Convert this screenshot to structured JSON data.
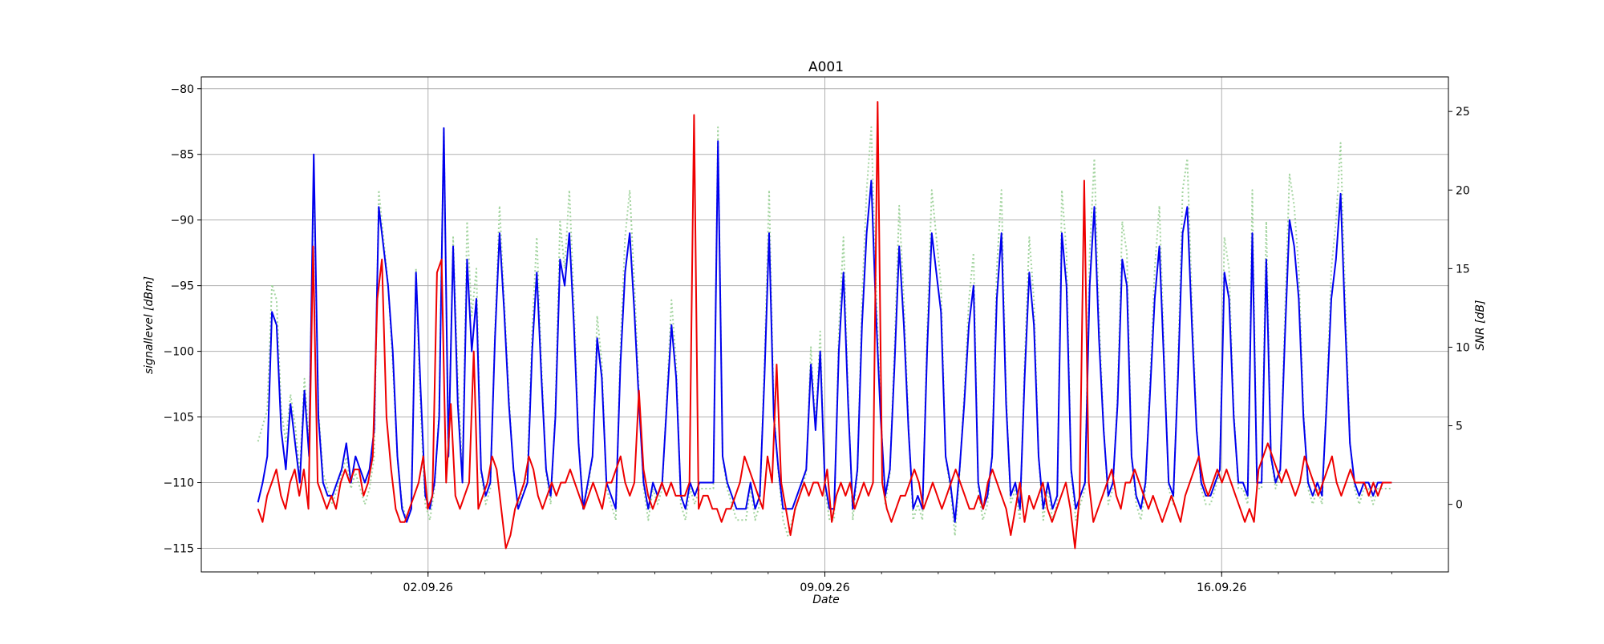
{
  "chart_data": {
    "type": "line",
    "title": "A001",
    "xlabel": "Date",
    "ylabel_left": "signallevel [dBm]",
    "ylabel_right": "SNR [dB]",
    "x_start": "30.08.26",
    "x_end": "19.09.26",
    "xlim": [
      "29.08.26",
      "20.09.26"
    ],
    "ylim_left": [
      -116.8,
      -79.1
    ],
    "ylim_right": [
      -4.3,
      27.2
    ],
    "x_ticks": [
      "02.09.26",
      "09.09.26",
      "16.09.26"
    ],
    "y_ticks_left": [
      -80,
      -85,
      -90,
      -95,
      -100,
      -105,
      -110,
      -115
    ],
    "y_ticks_right": [
      0,
      5,
      10,
      15,
      20,
      25
    ],
    "grid": true,
    "series": [
      {
        "axis": "left",
        "color": "#0000ee",
        "style": "solid",
        "values": [
          -111.5,
          -110,
          -108,
          -97,
          -98,
          -106,
          -109,
          -104,
          -107,
          -110,
          -103,
          -108,
          -85,
          -105,
          -110,
          -111,
          -111,
          -110,
          -109,
          -107,
          -110,
          -108,
          -109,
          -110,
          -109,
          -106,
          -89,
          -92,
          -95,
          -100,
          -108,
          -112,
          -113,
          -112,
          -94,
          -103,
          -111,
          -112,
          -110,
          -105,
          -83,
          -108,
          -92,
          -104,
          -110,
          -93,
          -100,
          -96,
          -109,
          -111,
          -110,
          -99,
          -91,
          -97,
          -104,
          -109,
          -112,
          -111,
          -110,
          -100,
          -94,
          -102,
          -109,
          -111,
          -105,
          -93,
          -95,
          -91,
          -98,
          -107,
          -112,
          -110,
          -108,
          -99,
          -102,
          -110,
          -111,
          -112,
          -101,
          -94,
          -91,
          -97,
          -104,
          -110,
          -112,
          -110,
          -111,
          -110,
          -104,
          -98,
          -102,
          -111,
          -112,
          -110,
          -111,
          -110,
          -110,
          -110,
          -110,
          -84,
          -108,
          -110,
          -111,
          -112,
          -112,
          -112,
          -110,
          -112,
          -111,
          -102,
          -91,
          -105,
          -109,
          -112,
          -112,
          -112,
          -111,
          -110,
          -109,
          -101,
          -106,
          -100,
          -110,
          -112,
          -112,
          -100,
          -94,
          -104,
          -112,
          -109,
          -98,
          -91,
          -87,
          -97,
          -105,
          -111,
          -109,
          -101,
          -92,
          -98,
          -106,
          -112,
          -111,
          -112,
          -100,
          -91,
          -94,
          -97,
          -108,
          -110,
          -113,
          -109,
          -104,
          -98,
          -95,
          -110,
          -112,
          -111,
          -108,
          -96,
          -91,
          -104,
          -111,
          -110,
          -112,
          -102,
          -94,
          -98,
          -108,
          -112,
          -110,
          -112,
          -111,
          -91,
          -95,
          -109,
          -112,
          -111,
          -110,
          -95,
          -89,
          -99,
          -106,
          -111,
          -110,
          -104,
          -93,
          -95,
          -108,
          -111,
          -112,
          -110,
          -103,
          -96,
          -92,
          -101,
          -110,
          -111,
          -102,
          -91,
          -89,
          -98,
          -106,
          -110,
          -111,
          -111,
          -110,
          -109,
          -94,
          -96,
          -105,
          -110,
          -110,
          -111,
          -91,
          -110,
          -110,
          -93,
          -108,
          -110,
          -109,
          -99,
          -90,
          -92,
          -96,
          -105,
          -110,
          -111,
          -110,
          -111,
          -104,
          -96,
          -93,
          -88,
          -98,
          -107,
          -110,
          -111,
          -110,
          -110,
          -111,
          -110,
          -110,
          -110,
          -110
        ]
      },
      {
        "axis": "left",
        "color": "#ee0000",
        "style": "solid",
        "values": [
          -112,
          -113,
          -111,
          -110,
          -109,
          -111,
          -112,
          -110,
          -109,
          -111,
          -109,
          -112,
          -92,
          -110,
          -111,
          -112,
          -111,
          -112,
          -110,
          -109,
          -110,
          -109,
          -109,
          -111,
          -110,
          -108,
          -96,
          -93,
          -105,
          -109,
          -112,
          -113,
          -113,
          -112,
          -111,
          -110,
          -108,
          -112,
          -111,
          -94,
          -93,
          -110,
          -104,
          -111,
          -112,
          -111,
          -110,
          -100,
          -112,
          -111,
          -110,
          -108,
          -109,
          -112,
          -115,
          -114,
          -112,
          -111,
          -110,
          -108,
          -109,
          -111,
          -112,
          -111,
          -110,
          -111,
          -110,
          -110,
          -109,
          -110,
          -111,
          -112,
          -111,
          -110,
          -111,
          -112,
          -110,
          -110,
          -109,
          -108,
          -110,
          -111,
          -110,
          -103,
          -109,
          -111,
          -112,
          -111,
          -110,
          -111,
          -110,
          -111,
          -111,
          -111,
          -110,
          -82,
          -112,
          -111,
          -111,
          -112,
          -112,
          -113,
          -112,
          -112,
          -111,
          -110,
          -108,
          -109,
          -110,
          -111,
          -112,
          -108,
          -110,
          -101,
          -110,
          -112,
          -114,
          -112,
          -111,
          -110,
          -111,
          -110,
          -110,
          -111,
          -109,
          -113,
          -111,
          -110,
          -111,
          -110,
          -112,
          -111,
          -110,
          -111,
          -110,
          -81,
          -110,
          -112,
          -113,
          -112,
          -111,
          -111,
          -110,
          -109,
          -110,
          -112,
          -111,
          -110,
          -111,
          -112,
          -111,
          -110,
          -109,
          -110,
          -111,
          -112,
          -112,
          -111,
          -112,
          -110,
          -109,
          -110,
          -111,
          -112,
          -114,
          -112,
          -110,
          -113,
          -111,
          -112,
          -111,
          -110,
          -112,
          -113,
          -112,
          -111,
          -110,
          -112,
          -115,
          -111,
          -87,
          -110,
          -113,
          -112,
          -111,
          -110,
          -109,
          -111,
          -112,
          -110,
          -110,
          -109,
          -110,
          -111,
          -112,
          -111,
          -112,
          -113,
          -112,
          -111,
          -112,
          -113,
          -111,
          -110,
          -109,
          -108,
          -110,
          -111,
          -110,
          -109,
          -110,
          -109,
          -110,
          -111,
          -112,
          -113,
          -112,
          -113,
          -109,
          -108,
          -107,
          -108,
          -109,
          -110,
          -109,
          -110,
          -111,
          -110,
          -108,
          -109,
          -110,
          -111,
          -110,
          -109,
          -108,
          -110,
          -111,
          -110,
          -109,
          -110,
          -110,
          -110,
          -111,
          -110,
          -111,
          -110,
          -110,
          -110
        ]
      },
      {
        "axis": "right",
        "color": "#a3d49f",
        "style": "dotted",
        "values": [
          4,
          5,
          6,
          14,
          13,
          6,
          4,
          7,
          5,
          2,
          8,
          4,
          21,
          6,
          2,
          1,
          0,
          1,
          2,
          3,
          1,
          2,
          1,
          0,
          1,
          3,
          20,
          17,
          14,
          9,
          3,
          0,
          -1,
          0,
          15,
          6,
          0,
          -1,
          1,
          6,
          24,
          3,
          17,
          8,
          2,
          18,
          12,
          15,
          2,
          0,
          1,
          11,
          19,
          13,
          7,
          2,
          0,
          1,
          2,
          11,
          17,
          9,
          2,
          0,
          6,
          18,
          15,
          20,
          13,
          4,
          0,
          1,
          3,
          12,
          9,
          1,
          0,
          -1,
          10,
          17,
          20,
          14,
          7,
          1,
          -1,
          1,
          0,
          1,
          7,
          13,
          9,
          0,
          -1,
          1,
          0,
          1,
          1,
          1,
          1,
          24,
          3,
          1,
          0,
          -1,
          -1,
          -1,
          1,
          -1,
          0,
          9,
          20,
          6,
          2,
          -1,
          -2,
          -1,
          0,
          1,
          2,
          10,
          5,
          11,
          1,
          -1,
          -1,
          11,
          17,
          7,
          -1,
          2,
          13,
          20,
          24,
          14,
          6,
          0,
          2,
          10,
          19,
          13,
          5,
          -1,
          0,
          -1,
          11,
          20,
          17,
          14,
          3,
          1,
          -2,
          2,
          7,
          13,
          16,
          1,
          -1,
          0,
          3,
          15,
          20,
          7,
          0,
          1,
          -1,
          9,
          17,
          13,
          3,
          -1,
          1,
          -1,
          0,
          20,
          16,
          2,
          -1,
          0,
          1,
          16,
          22,
          12,
          5,
          0,
          1,
          7,
          18,
          16,
          3,
          0,
          -1,
          1,
          8,
          15,
          19,
          10,
          1,
          0,
          9,
          20,
          22,
          13,
          5,
          1,
          0,
          0,
          1,
          2,
          17,
          15,
          6,
          1,
          1,
          0,
          20,
          1,
          1,
          18,
          3,
          1,
          2,
          12,
          21,
          19,
          15,
          6,
          1,
          0,
          1,
          0,
          7,
          15,
          18,
          23,
          13,
          4,
          1,
          0,
          1,
          1,
          0,
          1,
          1,
          1,
          1
        ]
      }
    ]
  }
}
